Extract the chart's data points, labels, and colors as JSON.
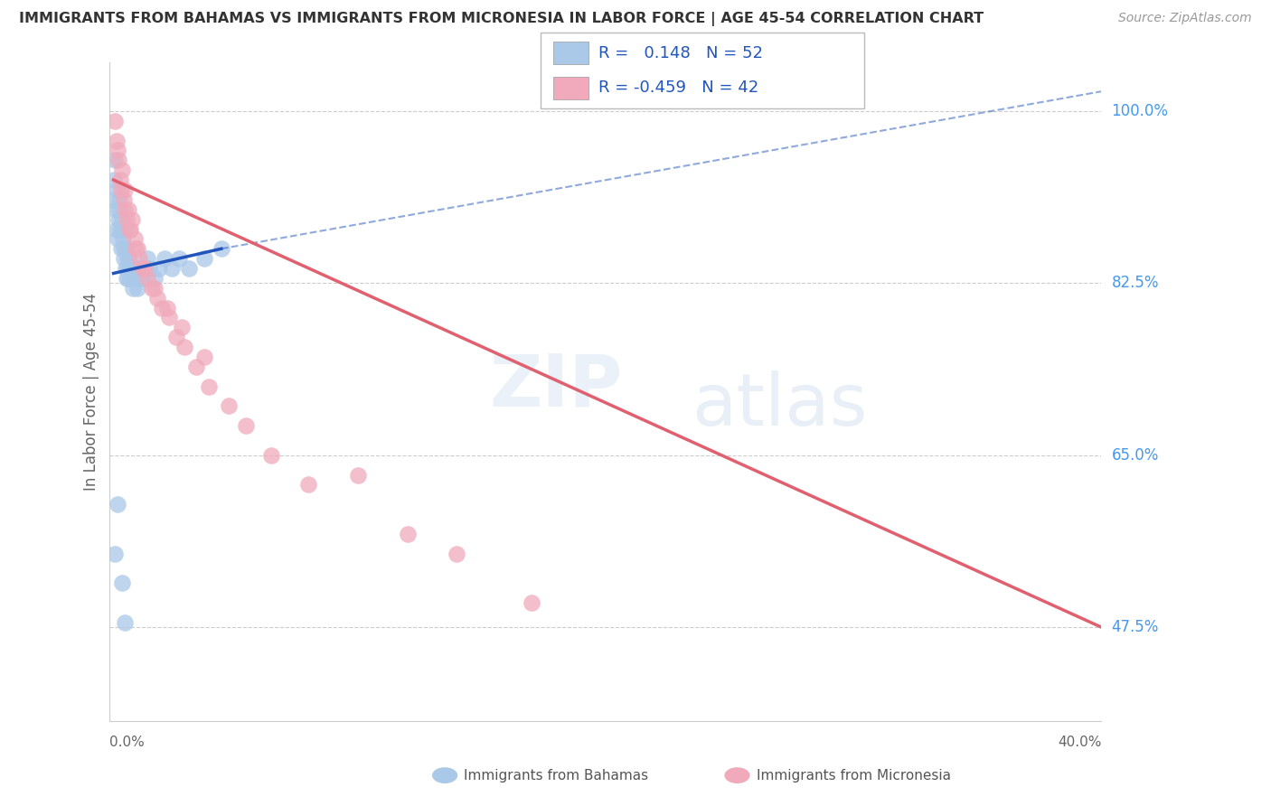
{
  "title": "IMMIGRANTS FROM BAHAMAS VS IMMIGRANTS FROM MICRONESIA IN LABOR FORCE | AGE 45-54 CORRELATION CHART",
  "source": "Source: ZipAtlas.com",
  "ylabel": "In Labor Force | Age 45-54",
  "y_ticks": [
    47.5,
    65.0,
    82.5,
    100.0
  ],
  "y_tick_labels": [
    "47.5%",
    "65.0%",
    "82.5%",
    "100.0%"
  ],
  "xlim": [
    0.0,
    40.0
  ],
  "ylim": [
    38.0,
    105.0
  ],
  "color_blue": "#aac8e8",
  "color_pink": "#f0aabb",
  "trendline_blue": "#2255bb",
  "trendline_pink": "#e06070",
  "watermark_zip": "ZIP",
  "watermark_atlas": "atlas",
  "legend_label1": "Immigrants from Bahamas",
  "legend_label2": "Immigrants from Micronesia",
  "bah_x": [
    0.15,
    0.18,
    0.22,
    0.25,
    0.28,
    0.3,
    0.32,
    0.35,
    0.38,
    0.4,
    0.42,
    0.45,
    0.48,
    0.5,
    0.52,
    0.55,
    0.58,
    0.6,
    0.63,
    0.65,
    0.68,
    0.7,
    0.72,
    0.75,
    0.78,
    0.82,
    0.85,
    0.88,
    0.92,
    0.95,
    0.98,
    1.02,
    1.05,
    1.1,
    1.15,
    1.2,
    1.3,
    1.4,
    1.5,
    1.6,
    1.8,
    2.0,
    2.2,
    2.5,
    2.8,
    3.2,
    3.8,
    4.5,
    0.2,
    0.3,
    0.5,
    0.6
  ],
  "bah_y": [
    93,
    91,
    95,
    90,
    88,
    92,
    87,
    89,
    91,
    90,
    88,
    86,
    89,
    88,
    87,
    86,
    85,
    88,
    84,
    86,
    83,
    85,
    84,
    83,
    85,
    84,
    83,
    84,
    83,
    82,
    84,
    83,
    84,
    82,
    83,
    84,
    83,
    84,
    85,
    84,
    83,
    84,
    85,
    84,
    85,
    84,
    85,
    86,
    55,
    60,
    52,
    48
  ],
  "mic_x": [
    0.2,
    0.28,
    0.35,
    0.42,
    0.5,
    0.55,
    0.6,
    0.68,
    0.75,
    0.82,
    0.9,
    1.0,
    1.1,
    1.2,
    1.35,
    1.5,
    1.7,
    1.9,
    2.1,
    2.4,
    2.7,
    3.0,
    3.5,
    4.0,
    4.8,
    5.5,
    6.5,
    8.0,
    10.0,
    12.0,
    14.0,
    17.0,
    0.3,
    0.45,
    0.62,
    0.8,
    1.05,
    1.4,
    1.8,
    2.3,
    2.9,
    3.8
  ],
  "mic_y": [
    99,
    97,
    95,
    93,
    94,
    91,
    92,
    89,
    90,
    88,
    89,
    87,
    86,
    85,
    84,
    83,
    82,
    81,
    80,
    79,
    77,
    76,
    74,
    72,
    70,
    68,
    65,
    62,
    63,
    57,
    55,
    50,
    96,
    92,
    90,
    88,
    86,
    84,
    82,
    80,
    78,
    75
  ],
  "bah_trend_x0": 0.15,
  "bah_trend_x1": 4.5,
  "bah_trend_y0": 83.5,
  "bah_trend_y1": 86.0,
  "bah_dash_x0": 4.5,
  "bah_dash_x1": 40.0,
  "bah_dash_y0": 86.0,
  "bah_dash_y1": 102.0,
  "mic_trend_x0": 0.15,
  "mic_trend_x1": 40.0,
  "mic_trend_y0": 93.0,
  "mic_trend_y1": 47.5
}
